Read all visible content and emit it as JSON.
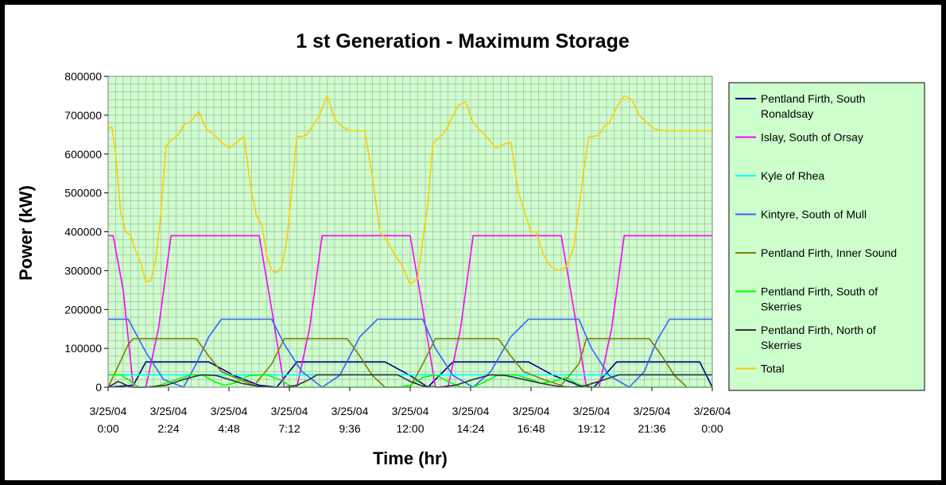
{
  "chart_data": {
    "type": "line",
    "title": "1 st Generation - Maximum Storage",
    "xlabel": "Time (hr)",
    "ylabel": "Power (kW)",
    "ylim": [
      0,
      800000
    ],
    "xlim_hours": [
      0,
      24
    ],
    "grid": true,
    "legend_position": "right",
    "y_ticks": [
      "0",
      "100000",
      "200000",
      "300000",
      "400000",
      "500000",
      "600000",
      "700000",
      "800000"
    ],
    "x_ticks": [
      {
        "date": "3/25/04",
        "time": "0:00"
      },
      {
        "date": "3/25/04",
        "time": "2:24"
      },
      {
        "date": "3/25/04",
        "time": "4:48"
      },
      {
        "date": "3/25/04",
        "time": "7:12"
      },
      {
        "date": "3/25/04",
        "time": "9:36"
      },
      {
        "date": "3/25/04",
        "time": "12:00"
      },
      {
        "date": "3/25/04",
        "time": "14:24"
      },
      {
        "date": "3/25/04",
        "time": "16:48"
      },
      {
        "date": "3/25/04",
        "time": "19:12"
      },
      {
        "date": "3/25/04",
        "time": "21:36"
      },
      {
        "date": "3/26/04",
        "time": "0:00"
      }
    ],
    "series": [
      {
        "name": "Pentland Firth, South Ronaldsay",
        "color": "#000080",
        "x": [
          0,
          1.0,
          1.5,
          4.0,
          5.0,
          6.0,
          6.7,
          7.5,
          11.0,
          12.0,
          12.7,
          13.7,
          16.7,
          17.7,
          18.7,
          19.3,
          20.2,
          23.5,
          24
        ],
        "y": [
          0,
          5000,
          65000,
          65000,
          30000,
          5000,
          0,
          65000,
          65000,
          30000,
          0,
          65000,
          65000,
          30000,
          5000,
          0,
          65000,
          65000,
          0
        ]
      },
      {
        "name": "Islay, South of Orsay",
        "color": "#FF00FF",
        "x": [
          0,
          0.2,
          0.6,
          1.0,
          1.5,
          2.0,
          2.5,
          6.0,
          6.5,
          7.0,
          7.5,
          8.0,
          8.5,
          12.0,
          12.5,
          13.0,
          13.5,
          14.0,
          14.5,
          18.0,
          18.5,
          19.0,
          19.5,
          20.0,
          20.5,
          24
        ],
        "y": [
          390000,
          390000,
          250000,
          0,
          0,
          150000,
          390000,
          390000,
          200000,
          0,
          0,
          150000,
          390000,
          390000,
          200000,
          0,
          0,
          150000,
          390000,
          390000,
          200000,
          0,
          0,
          150000,
          390000,
          390000
        ]
      },
      {
        "name": "Kyle of Rhea",
        "color": "#00FFFF",
        "x": [
          0,
          24
        ],
        "y": [
          32000,
          32000
        ]
      },
      {
        "name": "Kintyre, South of Mull",
        "color": "#3366FF",
        "x": [
          0,
          0.8,
          1.5,
          2.2,
          3.0,
          3.5,
          4.0,
          4.5,
          6.5,
          7.0,
          7.7,
          8.5,
          9.2,
          10.0,
          10.7,
          12.5,
          13.0,
          13.7,
          14.5,
          15.2,
          16.0,
          16.7,
          18.7,
          19.2,
          19.9,
          20.7,
          21.3,
          21.8,
          22.3,
          24
        ],
        "y": [
          175000,
          175000,
          90000,
          20000,
          0,
          60000,
          130000,
          175000,
          175000,
          110000,
          40000,
          0,
          30000,
          130000,
          175000,
          175000,
          100000,
          30000,
          0,
          40000,
          130000,
          175000,
          175000,
          100000,
          30000,
          0,
          40000,
          120000,
          175000,
          175000
        ]
      },
      {
        "name": "Pentland Firth, Inner Sound",
        "color": "#808000",
        "x": [
          0,
          0.3,
          0.8,
          1.0,
          3.5,
          4.0,
          4.5,
          5.2,
          5.8,
          6.5,
          7.0,
          9.5,
          10.0,
          10.5,
          11.0,
          11.5,
          12.0,
          12.5,
          13.0,
          15.5,
          16.0,
          16.5,
          17.3,
          18.0,
          18.7,
          19.0,
          21.5,
          22.0,
          22.5,
          23.0
        ],
        "y": [
          0,
          40000,
          110000,
          125000,
          125000,
          80000,
          40000,
          20000,
          5000,
          60000,
          125000,
          125000,
          80000,
          30000,
          0,
          0,
          0,
          60000,
          125000,
          125000,
          80000,
          40000,
          20000,
          5000,
          60000,
          125000,
          125000,
          80000,
          30000,
          0
        ]
      },
      {
        "name": "Pentland Firth, South of Skerries",
        "color": "#00FF00",
        "x": [
          0,
          0.5,
          0.9,
          1.2,
          1.8,
          2.5,
          3.3,
          3.8,
          4.2,
          4.6,
          5.0,
          5.6,
          6.3,
          6.8,
          7.2,
          7.5,
          8.0,
          8.5,
          9.0,
          11.5,
          12.0,
          12.5,
          13.0,
          13.5,
          14.0,
          14.5,
          15.0,
          15.5,
          16.2,
          16.8,
          17.2,
          17.7,
          18.2,
          18.6,
          19.0,
          19.5,
          20.0,
          24
        ],
        "y": [
          32000,
          32000,
          15000,
          0,
          0,
          15000,
          32000,
          30000,
          15000,
          5000,
          10000,
          30000,
          32000,
          20000,
          5000,
          0,
          0,
          0,
          0,
          0,
          5000,
          25000,
          32000,
          15000,
          0,
          0,
          15000,
          32000,
          32000,
          20000,
          10000,
          15000,
          25000,
          10000,
          0,
          0,
          0,
          0
        ]
      },
      {
        "name": "Pentland Firth, North of Skerries",
        "color": "#333333",
        "x": [
          0,
          0.4,
          0.9,
          1.5,
          2.3,
          3.0,
          3.7,
          4.3,
          4.8,
          5.3,
          5.9,
          6.5,
          7.0,
          7.5,
          8.0,
          8.3,
          11.5,
          12.0,
          12.5,
          13.1,
          13.8,
          14.5,
          15.2,
          15.8,
          16.5,
          17.2,
          17.8,
          18.4,
          18.9,
          19.5,
          20.3,
          24
        ],
        "y": [
          0,
          15000,
          0,
          0,
          5000,
          20000,
          32000,
          30000,
          20000,
          10000,
          3000,
          0,
          0,
          5000,
          20000,
          32000,
          32000,
          15000,
          3000,
          0,
          5000,
          20000,
          32000,
          30000,
          20000,
          10000,
          3000,
          0,
          3000,
          15000,
          32000,
          32000
        ]
      },
      {
        "name": "Total",
        "color": "#FFCC00",
        "x": [
          0,
          0.15,
          0.3,
          0.5,
          0.7,
          0.9,
          1.1,
          1.3,
          1.5,
          1.7,
          1.9,
          2.1,
          2.3,
          2.5,
          2.8,
          3.0,
          3.3,
          3.6,
          3.9,
          4.2,
          4.5,
          4.8,
          5.1,
          5.4,
          5.7,
          5.9,
          6.1,
          6.3,
          6.5,
          6.7,
          6.9,
          7.1,
          7.3,
          7.5,
          7.7,
          7.9,
          8.2,
          8.4,
          8.7,
          9.0,
          9.3,
          9.6,
          9.9,
          10.2,
          10.5,
          10.8,
          11.1,
          11.4,
          11.7,
          12.0,
          12.3,
          12.5,
          12.7,
          12.9,
          13.1,
          13.3,
          13.5,
          13.7,
          13.9,
          14.2,
          14.5,
          14.8,
          15.1,
          15.4,
          15.7,
          16.0,
          16.3,
          16.6,
          16.8,
          17.0,
          17.3,
          17.6,
          17.9,
          18.2,
          18.5,
          18.7,
          18.9,
          19.1,
          19.3,
          19.5,
          19.7,
          19.9,
          20.2,
          20.5,
          20.8,
          21.1,
          21.4,
          21.7,
          22.0,
          22.3,
          22.6,
          22.9,
          23.2,
          23.5,
          23.8,
          24.0
        ],
        "y": [
          665000,
          670000,
          600000,
          450000,
          400000,
          390000,
          350000,
          320000,
          270000,
          275000,
          330000,
          450000,
          620000,
          635000,
          650000,
          675000,
          685000,
          710000,
          665000,
          650000,
          630000,
          615000,
          630000,
          645000,
          500000,
          440000,
          420000,
          340000,
          300000,
          295000,
          310000,
          380000,
          510000,
          645000,
          645000,
          650000,
          680000,
          700000,
          750000,
          690000,
          670000,
          660000,
          660000,
          660000,
          540000,
          400000,
          375000,
          340000,
          310000,
          265000,
          280000,
          380000,
          470000,
          625000,
          640000,
          650000,
          670000,
          700000,
          725000,
          735000,
          680000,
          660000,
          640000,
          615000,
          625000,
          630000,
          500000,
          440000,
          400000,
          400000,
          340000,
          310000,
          300000,
          310000,
          360000,
          460000,
          560000,
          645000,
          645000,
          650000,
          670000,
          680000,
          720000,
          750000,
          740000,
          700000,
          680000,
          665000,
          660000,
          660000,
          660000,
          660000,
          660000,
          660000,
          660000,
          660000
        ]
      }
    ]
  }
}
